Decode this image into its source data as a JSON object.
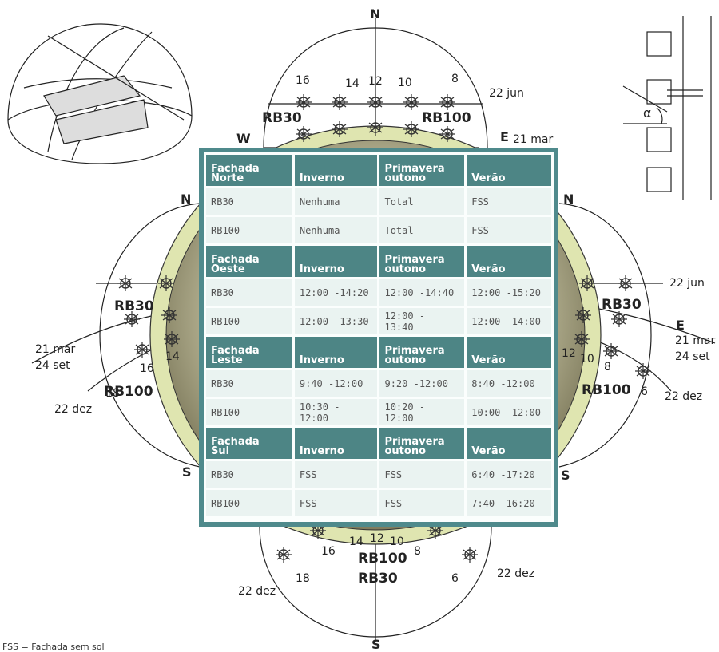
{
  "compass": {
    "top": {
      "n": "N",
      "w": "W",
      "e": "E",
      "s": "S"
    },
    "west_side": {
      "n": "N",
      "s": "S"
    },
    "east_side": {
      "n": "N",
      "s": "S"
    }
  },
  "labels": {
    "jun22": "22 jun",
    "mar21": "21 mar",
    "set24": "24 set",
    "dez22": "22 dez",
    "rb30": "RB30",
    "rb100": "RB100",
    "hours": {
      "h16": "16",
      "h14": "14",
      "h12": "12",
      "h10": "10",
      "h8": "8",
      "h18": "18",
      "h6": "6"
    },
    "alpha": "α"
  },
  "table": {
    "sections": [
      {
        "head": [
          "Fachada",
          "Norte"
        ],
        "rows": [
          [
            "RB30",
            "Nenhuma",
            "Total",
            "FSS"
          ],
          [
            "RB100",
            "Nenhuma",
            "Total",
            "FSS"
          ]
        ]
      },
      {
        "head": [
          "Fachada",
          "Oeste"
        ],
        "rows": [
          [
            "RB30",
            "12:00 -14:20",
            "12:00 -14:40",
            "12:00 -15:20"
          ],
          [
            "RB100",
            "12:00 -13:30",
            "12:00 - 13:40",
            "12:00 -14:00"
          ]
        ]
      },
      {
        "head": [
          "Fachada",
          "Leste"
        ],
        "rows": [
          [
            "RB30",
            "9:40 -12:00",
            "9:20 -12:00",
            "8:40 -12:00"
          ],
          [
            "RB100",
            "10:30 - 12:00",
            "10:20 - 12:00",
            "10:00 -12:00"
          ]
        ]
      },
      {
        "head": [
          "Fachada",
          "Sul"
        ],
        "rows": [
          [
            "RB30",
            "FSS",
            "FSS",
            "6:40 -17:20"
          ],
          [
            "RB100",
            "FSS",
            "FSS",
            "7:40 -16:20"
          ]
        ]
      }
    ],
    "columns": {
      "inverno": "Inverno",
      "primavera": [
        "Primavera",
        "outono"
      ],
      "verao": "Verão"
    }
  },
  "footnote": "FSS = Fachada sem sol",
  "colors": {
    "panel": "#4f8a8c",
    "header": "#4d8585",
    "cell": "#eaf3f1",
    "sphere_outer": "#dfe5b0",
    "sphere_inner": "#8f8b66"
  }
}
